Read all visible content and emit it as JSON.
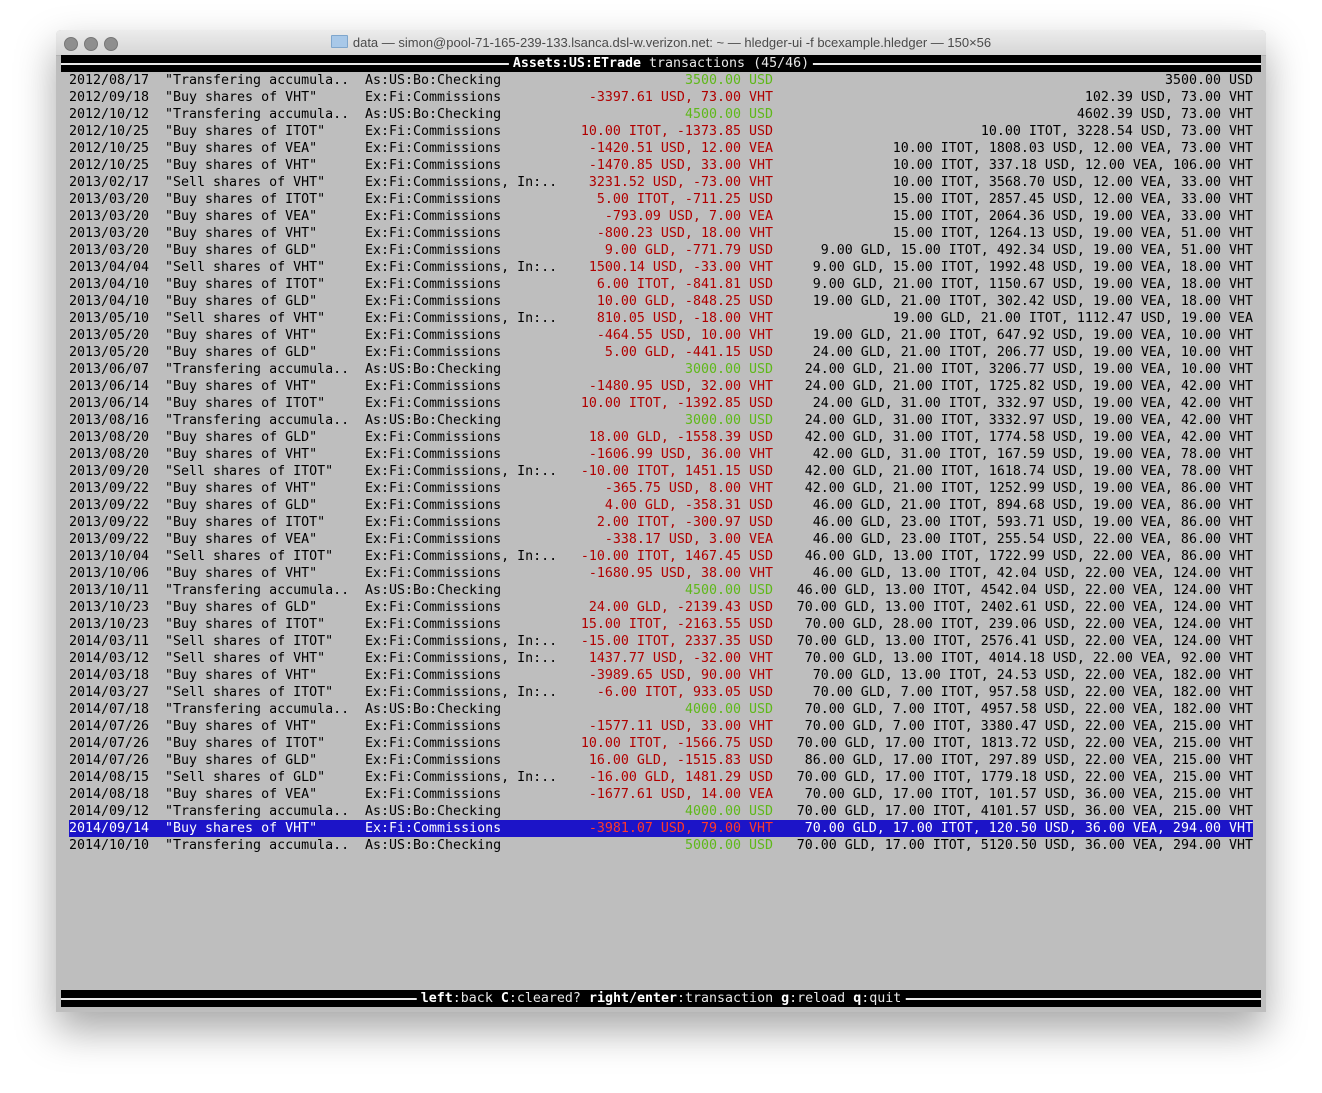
{
  "window": {
    "title": "data — simon@pool-71-165-239-133.lsanca.dsl-w.verizon.net: ~ — hledger-ui -f bcexample.hledger — 150×56"
  },
  "header": {
    "account": "Assets:US:ETrade",
    "label": "transactions (45/46)"
  },
  "colors": {
    "positive": "#5fb81a",
    "negative": "#b00000",
    "selection": "#1c14c8",
    "background": "#bebebe"
  },
  "selected_index": 44,
  "rows": [
    [
      "2012/08/17",
      "\"Transfering accumula..",
      "As:US:Bo:Checking",
      "3500.00 USD",
      "3500.00 USD"
    ],
    [
      "2012/09/18",
      "\"Buy shares of VHT\"",
      "Ex:Fi:Commissions",
      "-3397.61 USD, 73.00 VHT",
      "102.39 USD, 73.00 VHT"
    ],
    [
      "2012/10/12",
      "\"Transfering accumula..",
      "As:US:Bo:Checking",
      "4500.00 USD",
      "4602.39 USD, 73.00 VHT"
    ],
    [
      "2012/10/25",
      "\"Buy shares of ITOT\"",
      "Ex:Fi:Commissions",
      "10.00 ITOT, -1373.85 USD",
      "10.00 ITOT, 3228.54 USD, 73.00 VHT"
    ],
    [
      "2012/10/25",
      "\"Buy shares of VEA\"",
      "Ex:Fi:Commissions",
      "-1420.51 USD, 12.00 VEA",
      "10.00 ITOT, 1808.03 USD, 12.00 VEA, 73.00 VHT"
    ],
    [
      "2012/10/25",
      "\"Buy shares of VHT\"",
      "Ex:Fi:Commissions",
      "-1470.85 USD, 33.00 VHT",
      "10.00 ITOT, 337.18 USD, 12.00 VEA, 106.00 VHT"
    ],
    [
      "2013/02/17",
      "\"Sell shares of VHT\"",
      "Ex:Fi:Commissions, In:..",
      "3231.52 USD, -73.00 VHT",
      "10.00 ITOT, 3568.70 USD, 12.00 VEA, 33.00 VHT"
    ],
    [
      "2013/03/20",
      "\"Buy shares of ITOT\"",
      "Ex:Fi:Commissions",
      "5.00 ITOT, -711.25 USD",
      "15.00 ITOT, 2857.45 USD, 12.00 VEA, 33.00 VHT"
    ],
    [
      "2013/03/20",
      "\"Buy shares of VEA\"",
      "Ex:Fi:Commissions",
      "-793.09 USD, 7.00 VEA",
      "15.00 ITOT, 2064.36 USD, 19.00 VEA, 33.00 VHT"
    ],
    [
      "2013/03/20",
      "\"Buy shares of VHT\"",
      "Ex:Fi:Commissions",
      "-800.23 USD, 18.00 VHT",
      "15.00 ITOT, 1264.13 USD, 19.00 VEA, 51.00 VHT"
    ],
    [
      "2013/03/20",
      "\"Buy shares of GLD\"",
      "Ex:Fi:Commissions",
      "9.00 GLD, -771.79 USD",
      "9.00 GLD, 15.00 ITOT, 492.34 USD, 19.00 VEA, 51.00 VHT"
    ],
    [
      "2013/04/04",
      "\"Sell shares of VHT\"",
      "Ex:Fi:Commissions, In:..",
      "1500.14 USD, -33.00 VHT",
      "9.00 GLD, 15.00 ITOT, 1992.48 USD, 19.00 VEA, 18.00 VHT"
    ],
    [
      "2013/04/10",
      "\"Buy shares of ITOT\"",
      "Ex:Fi:Commissions",
      "6.00 ITOT, -841.81 USD",
      "9.00 GLD, 21.00 ITOT, 1150.67 USD, 19.00 VEA, 18.00 VHT"
    ],
    [
      "2013/04/10",
      "\"Buy shares of GLD\"",
      "Ex:Fi:Commissions",
      "10.00 GLD, -848.25 USD",
      "19.00 GLD, 21.00 ITOT, 302.42 USD, 19.00 VEA, 18.00 VHT"
    ],
    [
      "2013/05/10",
      "\"Sell shares of VHT\"",
      "Ex:Fi:Commissions, In:..",
      "810.05 USD, -18.00 VHT",
      "19.00 GLD, 21.00 ITOT, 1112.47 USD, 19.00 VEA"
    ],
    [
      "2013/05/20",
      "\"Buy shares of VHT\"",
      "Ex:Fi:Commissions",
      "-464.55 USD, 10.00 VHT",
      "19.00 GLD, 21.00 ITOT, 647.92 USD, 19.00 VEA, 10.00 VHT"
    ],
    [
      "2013/05/20",
      "\"Buy shares of GLD\"",
      "Ex:Fi:Commissions",
      "5.00 GLD, -441.15 USD",
      "24.00 GLD, 21.00 ITOT, 206.77 USD, 19.00 VEA, 10.00 VHT"
    ],
    [
      "2013/06/07",
      "\"Transfering accumula..",
      "As:US:Bo:Checking",
      "3000.00 USD",
      "24.00 GLD, 21.00 ITOT, 3206.77 USD, 19.00 VEA, 10.00 VHT"
    ],
    [
      "2013/06/14",
      "\"Buy shares of VHT\"",
      "Ex:Fi:Commissions",
      "-1480.95 USD, 32.00 VHT",
      "24.00 GLD, 21.00 ITOT, 1725.82 USD, 19.00 VEA, 42.00 VHT"
    ],
    [
      "2013/06/14",
      "\"Buy shares of ITOT\"",
      "Ex:Fi:Commissions",
      "10.00 ITOT, -1392.85 USD",
      "24.00 GLD, 31.00 ITOT, 332.97 USD, 19.00 VEA, 42.00 VHT"
    ],
    [
      "2013/08/16",
      "\"Transfering accumula..",
      "As:US:Bo:Checking",
      "3000.00 USD",
      "24.00 GLD, 31.00 ITOT, 3332.97 USD, 19.00 VEA, 42.00 VHT"
    ],
    [
      "2013/08/20",
      "\"Buy shares of GLD\"",
      "Ex:Fi:Commissions",
      "18.00 GLD, -1558.39 USD",
      "42.00 GLD, 31.00 ITOT, 1774.58 USD, 19.00 VEA, 42.00 VHT"
    ],
    [
      "2013/08/20",
      "\"Buy shares of VHT\"",
      "Ex:Fi:Commissions",
      "-1606.99 USD, 36.00 VHT",
      "42.00 GLD, 31.00 ITOT, 167.59 USD, 19.00 VEA, 78.00 VHT"
    ],
    [
      "2013/09/20",
      "\"Sell shares of ITOT\"",
      "Ex:Fi:Commissions, In:..",
      "-10.00 ITOT, 1451.15 USD",
      "42.00 GLD, 21.00 ITOT, 1618.74 USD, 19.00 VEA, 78.00 VHT"
    ],
    [
      "2013/09/22",
      "\"Buy shares of VHT\"",
      "Ex:Fi:Commissions",
      "-365.75 USD, 8.00 VHT",
      "42.00 GLD, 21.00 ITOT, 1252.99 USD, 19.00 VEA, 86.00 VHT"
    ],
    [
      "2013/09/22",
      "\"Buy shares of GLD\"",
      "Ex:Fi:Commissions",
      "4.00 GLD, -358.31 USD",
      "46.00 GLD, 21.00 ITOT, 894.68 USD, 19.00 VEA, 86.00 VHT"
    ],
    [
      "2013/09/22",
      "\"Buy shares of ITOT\"",
      "Ex:Fi:Commissions",
      "2.00 ITOT, -300.97 USD",
      "46.00 GLD, 23.00 ITOT, 593.71 USD, 19.00 VEA, 86.00 VHT"
    ],
    [
      "2013/09/22",
      "\"Buy shares of VEA\"",
      "Ex:Fi:Commissions",
      "-338.17 USD, 3.00 VEA",
      "46.00 GLD, 23.00 ITOT, 255.54 USD, 22.00 VEA, 86.00 VHT"
    ],
    [
      "2013/10/04",
      "\"Sell shares of ITOT\"",
      "Ex:Fi:Commissions, In:..",
      "-10.00 ITOT, 1467.45 USD",
      "46.00 GLD, 13.00 ITOT, 1722.99 USD, 22.00 VEA, 86.00 VHT"
    ],
    [
      "2013/10/06",
      "\"Buy shares of VHT\"",
      "Ex:Fi:Commissions",
      "-1680.95 USD, 38.00 VHT",
      "46.00 GLD, 13.00 ITOT, 42.04 USD, 22.00 VEA, 124.00 VHT"
    ],
    [
      "2013/10/11",
      "\"Transfering accumula..",
      "As:US:Bo:Checking",
      "4500.00 USD",
      "46.00 GLD, 13.00 ITOT, 4542.04 USD, 22.00 VEA, 124.00 VHT"
    ],
    [
      "2013/10/23",
      "\"Buy shares of GLD\"",
      "Ex:Fi:Commissions",
      "24.00 GLD, -2139.43 USD",
      "70.00 GLD, 13.00 ITOT, 2402.61 USD, 22.00 VEA, 124.00 VHT"
    ],
    [
      "2013/10/23",
      "\"Buy shares of ITOT\"",
      "Ex:Fi:Commissions",
      "15.00 ITOT, -2163.55 USD",
      "70.00 GLD, 28.00 ITOT, 239.06 USD, 22.00 VEA, 124.00 VHT"
    ],
    [
      "2014/03/11",
      "\"Sell shares of ITOT\"",
      "Ex:Fi:Commissions, In:..",
      "-15.00 ITOT, 2337.35 USD",
      "70.00 GLD, 13.00 ITOT, 2576.41 USD, 22.00 VEA, 124.00 VHT"
    ],
    [
      "2014/03/12",
      "\"Sell shares of VHT\"",
      "Ex:Fi:Commissions, In:..",
      "1437.77 USD, -32.00 VHT",
      "70.00 GLD, 13.00 ITOT, 4014.18 USD, 22.00 VEA, 92.00 VHT"
    ],
    [
      "2014/03/18",
      "\"Buy shares of VHT\"",
      "Ex:Fi:Commissions",
      "-3989.65 USD, 90.00 VHT",
      "70.00 GLD, 13.00 ITOT, 24.53 USD, 22.00 VEA, 182.00 VHT"
    ],
    [
      "2014/03/27",
      "\"Sell shares of ITOT\"",
      "Ex:Fi:Commissions, In:..",
      "-6.00 ITOT, 933.05 USD",
      "70.00 GLD, 7.00 ITOT, 957.58 USD, 22.00 VEA, 182.00 VHT"
    ],
    [
      "2014/07/18",
      "\"Transfering accumula..",
      "As:US:Bo:Checking",
      "4000.00 USD",
      "70.00 GLD, 7.00 ITOT, 4957.58 USD, 22.00 VEA, 182.00 VHT"
    ],
    [
      "2014/07/26",
      "\"Buy shares of VHT\"",
      "Ex:Fi:Commissions",
      "-1577.11 USD, 33.00 VHT",
      "70.00 GLD, 7.00 ITOT, 3380.47 USD, 22.00 VEA, 215.00 VHT"
    ],
    [
      "2014/07/26",
      "\"Buy shares of ITOT\"",
      "Ex:Fi:Commissions",
      "10.00 ITOT, -1566.75 USD",
      "70.00 GLD, 17.00 ITOT, 1813.72 USD, 22.00 VEA, 215.00 VHT"
    ],
    [
      "2014/07/26",
      "\"Buy shares of GLD\"",
      "Ex:Fi:Commissions",
      "16.00 GLD, -1515.83 USD",
      "86.00 GLD, 17.00 ITOT, 297.89 USD, 22.00 VEA, 215.00 VHT"
    ],
    [
      "2014/08/15",
      "\"Sell shares of GLD\"",
      "Ex:Fi:Commissions, In:..",
      "-16.00 GLD, 1481.29 USD",
      "70.00 GLD, 17.00 ITOT, 1779.18 USD, 22.00 VEA, 215.00 VHT"
    ],
    [
      "2014/08/18",
      "\"Buy shares of VEA\"",
      "Ex:Fi:Commissions",
      "-1677.61 USD, 14.00 VEA",
      "70.00 GLD, 17.00 ITOT, 101.57 USD, 36.00 VEA, 215.00 VHT"
    ],
    [
      "2014/09/12",
      "\"Transfering accumula..",
      "As:US:Bo:Checking",
      "4000.00 USD",
      "70.00 GLD, 17.00 ITOT, 4101.57 USD, 36.00 VEA, 215.00 VHT"
    ],
    [
      "2014/09/14",
      "\"Buy shares of VHT\"",
      "Ex:Fi:Commissions",
      "-3981.07 USD, 79.00 VHT",
      "70.00 GLD, 17.00 ITOT, 120.50 USD, 36.00 VEA, 294.00 VHT"
    ],
    [
      "2014/10/10",
      "\"Transfering accumula..",
      "As:US:Bo:Checking",
      "5000.00 USD",
      "70.00 GLD, 17.00 ITOT, 5120.50 USD, 36.00 VEA, 294.00 VHT"
    ]
  ],
  "footer": {
    "keys": [
      {
        "key": "left",
        "action": "back"
      },
      {
        "key": "C",
        "action": "cleared?"
      },
      {
        "key": "right/enter",
        "action": "transaction"
      },
      {
        "key": "g",
        "action": "reload"
      },
      {
        "key": "q",
        "action": "quit"
      }
    ]
  }
}
